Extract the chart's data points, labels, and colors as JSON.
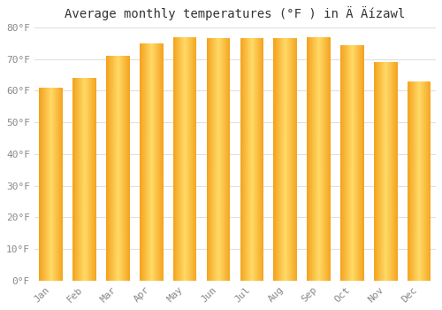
{
  "title": "Average monthly temperatures (°F ) in Ä Äízawl",
  "months": [
    "Jan",
    "Feb",
    "Mar",
    "Apr",
    "May",
    "Jun",
    "Jul",
    "Aug",
    "Sep",
    "Oct",
    "Nov",
    "Dec"
  ],
  "values": [
    61,
    64,
    71,
    75,
    77,
    76.5,
    76.5,
    76.5,
    77,
    74.5,
    69,
    63
  ],
  "background_color": "#ffffff",
  "axis_bg_color": "#ffffff",
  "ylim": [
    0,
    80
  ],
  "yticks": [
    0,
    10,
    20,
    30,
    40,
    50,
    60,
    70,
    80
  ],
  "ytick_labels": [
    "0°F",
    "10°F",
    "20°F",
    "30°F",
    "40°F",
    "50°F",
    "60°F",
    "70°F",
    "80°F"
  ],
  "title_fontsize": 10,
  "tick_fontsize": 8,
  "grid_color": "#e0e0e0",
  "bar_color_center": "#FFD966",
  "bar_color_edge": "#F4A21E",
  "tick_color": "#888888"
}
